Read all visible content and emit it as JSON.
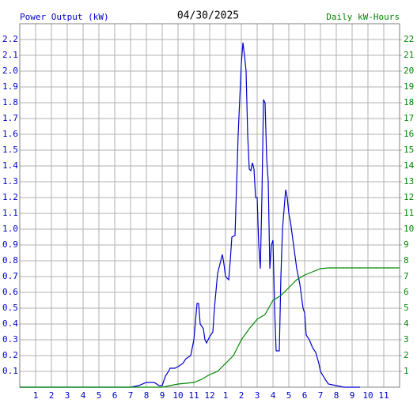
{
  "chart_data": {
    "type": "line",
    "title": "04/30/2025",
    "xlim": [
      0,
      24
    ],
    "xticks": [
      1,
      2,
      3,
      4,
      5,
      6,
      7,
      8,
      9,
      10,
      11,
      12,
      {
        "value": 13,
        "label": "1"
      },
      {
        "value": 14,
        "label": "2"
      },
      {
        "value": 15,
        "label": "3"
      },
      {
        "value": 16,
        "label": "4"
      },
      {
        "value": 17,
        "label": "5"
      },
      {
        "value": 18,
        "label": "6"
      },
      {
        "value": 19,
        "label": "7"
      },
      {
        "value": 20,
        "label": "8"
      },
      {
        "value": 21,
        "label": "9"
      },
      {
        "value": 22,
        "label": "10"
      },
      {
        "value": 23,
        "label": "11"
      }
    ],
    "ylim": [
      0,
      2.3
    ],
    "yticks": [
      0.1,
      0.2,
      0.3,
      0.4,
      0.5,
      0.6,
      0.7,
      0.8,
      0.9,
      {
        "value": 1,
        "label": "1.0"
      },
      1.1,
      1.2,
      1.3,
      1.4,
      1.5,
      1.6,
      1.7,
      1.8,
      1.9,
      {
        "value": 2,
        "label": "2.0"
      },
      2.1,
      2.2
    ],
    "y2lim": [
      0,
      23
    ],
    "y2ticks": [
      1,
      2,
      3,
      4,
      5,
      6,
      7,
      8,
      9,
      10,
      11,
      12,
      13,
      14,
      15,
      16,
      17,
      18,
      19,
      20,
      21,
      22
    ],
    "grid": true,
    "series": [
      {
        "name": "Power Output (kW)",
        "color": "#0000cc",
        "x": [
          0,
          7,
          7.5,
          8,
          8.5,
          8.8,
          9,
          9.2,
          9.4,
          9.5,
          9.8,
          10,
          10.3,
          10.5,
          10.8,
          11,
          11.2,
          11.3,
          11.4,
          11.6,
          11.7,
          11.8,
          12,
          12.2,
          12.3,
          12.5,
          12.7,
          12.8,
          12.9,
          13,
          13.2,
          13.3,
          13.4,
          13.6,
          13.8,
          14,
          14.1,
          14.2,
          14.3,
          14.4,
          14.5,
          14.6,
          14.7,
          14.8,
          14.9,
          15,
          15.1,
          15.2,
          15.3,
          15.4,
          15.5,
          15.6,
          15.7,
          15.8,
          15.9,
          16,
          16.1,
          16.2,
          16.4,
          16.5,
          16.6,
          16.8,
          16.9,
          17,
          17.1,
          17.3,
          17.5,
          17.7,
          17.9,
          18,
          18.1,
          18.3,
          18.5,
          18.7,
          18.9,
          19,
          19.3,
          19.5,
          20,
          20.5,
          21.5
        ],
        "values": [
          0,
          0,
          0.01,
          0.03,
          0.03,
          0.01,
          0.01,
          0.07,
          0.1,
          0.12,
          0.12,
          0.13,
          0.15,
          0.18,
          0.2,
          0.3,
          0.53,
          0.53,
          0.4,
          0.37,
          0.3,
          0.28,
          0.32,
          0.35,
          0.5,
          0.72,
          0.8,
          0.84,
          0.78,
          0.7,
          0.68,
          0.8,
          0.95,
          0.96,
          1.6,
          2.05,
          2.18,
          2.1,
          2.0,
          1.6,
          1.38,
          1.37,
          1.42,
          1.38,
          1.2,
          1.2,
          0.9,
          0.75,
          1.2,
          1.82,
          1.8,
          1.45,
          1.3,
          0.75,
          0.9,
          0.93,
          0.5,
          0.23,
          0.23,
          0.7,
          1.0,
          1.25,
          1.2,
          1.1,
          1.05,
          0.9,
          0.75,
          0.65,
          0.5,
          0.47,
          0.33,
          0.3,
          0.25,
          0.22,
          0.15,
          0.1,
          0.05,
          0.02,
          0.01,
          0,
          0
        ]
      },
      {
        "name": "Daily kW-Hours",
        "color": "#008800",
        "axis": "y2",
        "x": [
          0,
          9,
          9.5,
          10,
          11,
          11.5,
          12,
          12.5,
          13,
          13.5,
          14,
          14.5,
          15,
          15.5,
          16,
          16.5,
          17,
          17.5,
          18,
          18.5,
          19,
          19.5,
          20,
          24
        ],
        "values": [
          0,
          0,
          0.1,
          0.2,
          0.3,
          0.5,
          0.8,
          1.0,
          1.5,
          2.0,
          3.0,
          3.7,
          4.3,
          4.6,
          5.5,
          5.8,
          6.3,
          6.8,
          7.1,
          7.3,
          7.5,
          7.55,
          7.55,
          7.55
        ]
      }
    ]
  }
}
